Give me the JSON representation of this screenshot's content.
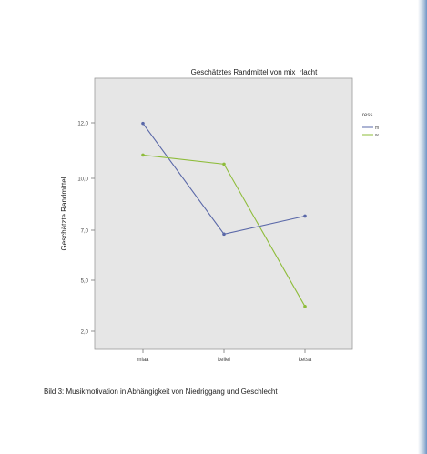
{
  "chart_data": {
    "type": "line",
    "title": "Geschätztes Randmittel von mix_rlacht",
    "xlabel": "",
    "ylabel": "Geschätzte Randmittel",
    "categories": [
      "mlaa",
      "kellei",
      "ketsa"
    ],
    "y_ticks": [
      "12,0",
      "10,0",
      "7,0",
      "5,0",
      "2,0"
    ],
    "ylim": [
      1,
      13
    ],
    "legend_title": "ress",
    "legend_items": [
      "m",
      "w"
    ],
    "legend_position": "right",
    "grid": false,
    "series": [
      {
        "name": "m",
        "values": [
          11.0,
          6.1,
          6.9
        ],
        "color": "#5a68a8"
      },
      {
        "name": "w",
        "values": [
          9.6,
          9.2,
          2.9
        ],
        "color": "#8ebc3a"
      }
    ]
  },
  "caption": "Bild 3: Musikmotivation in Abhängigkeit von Niedriggang und Geschlecht"
}
